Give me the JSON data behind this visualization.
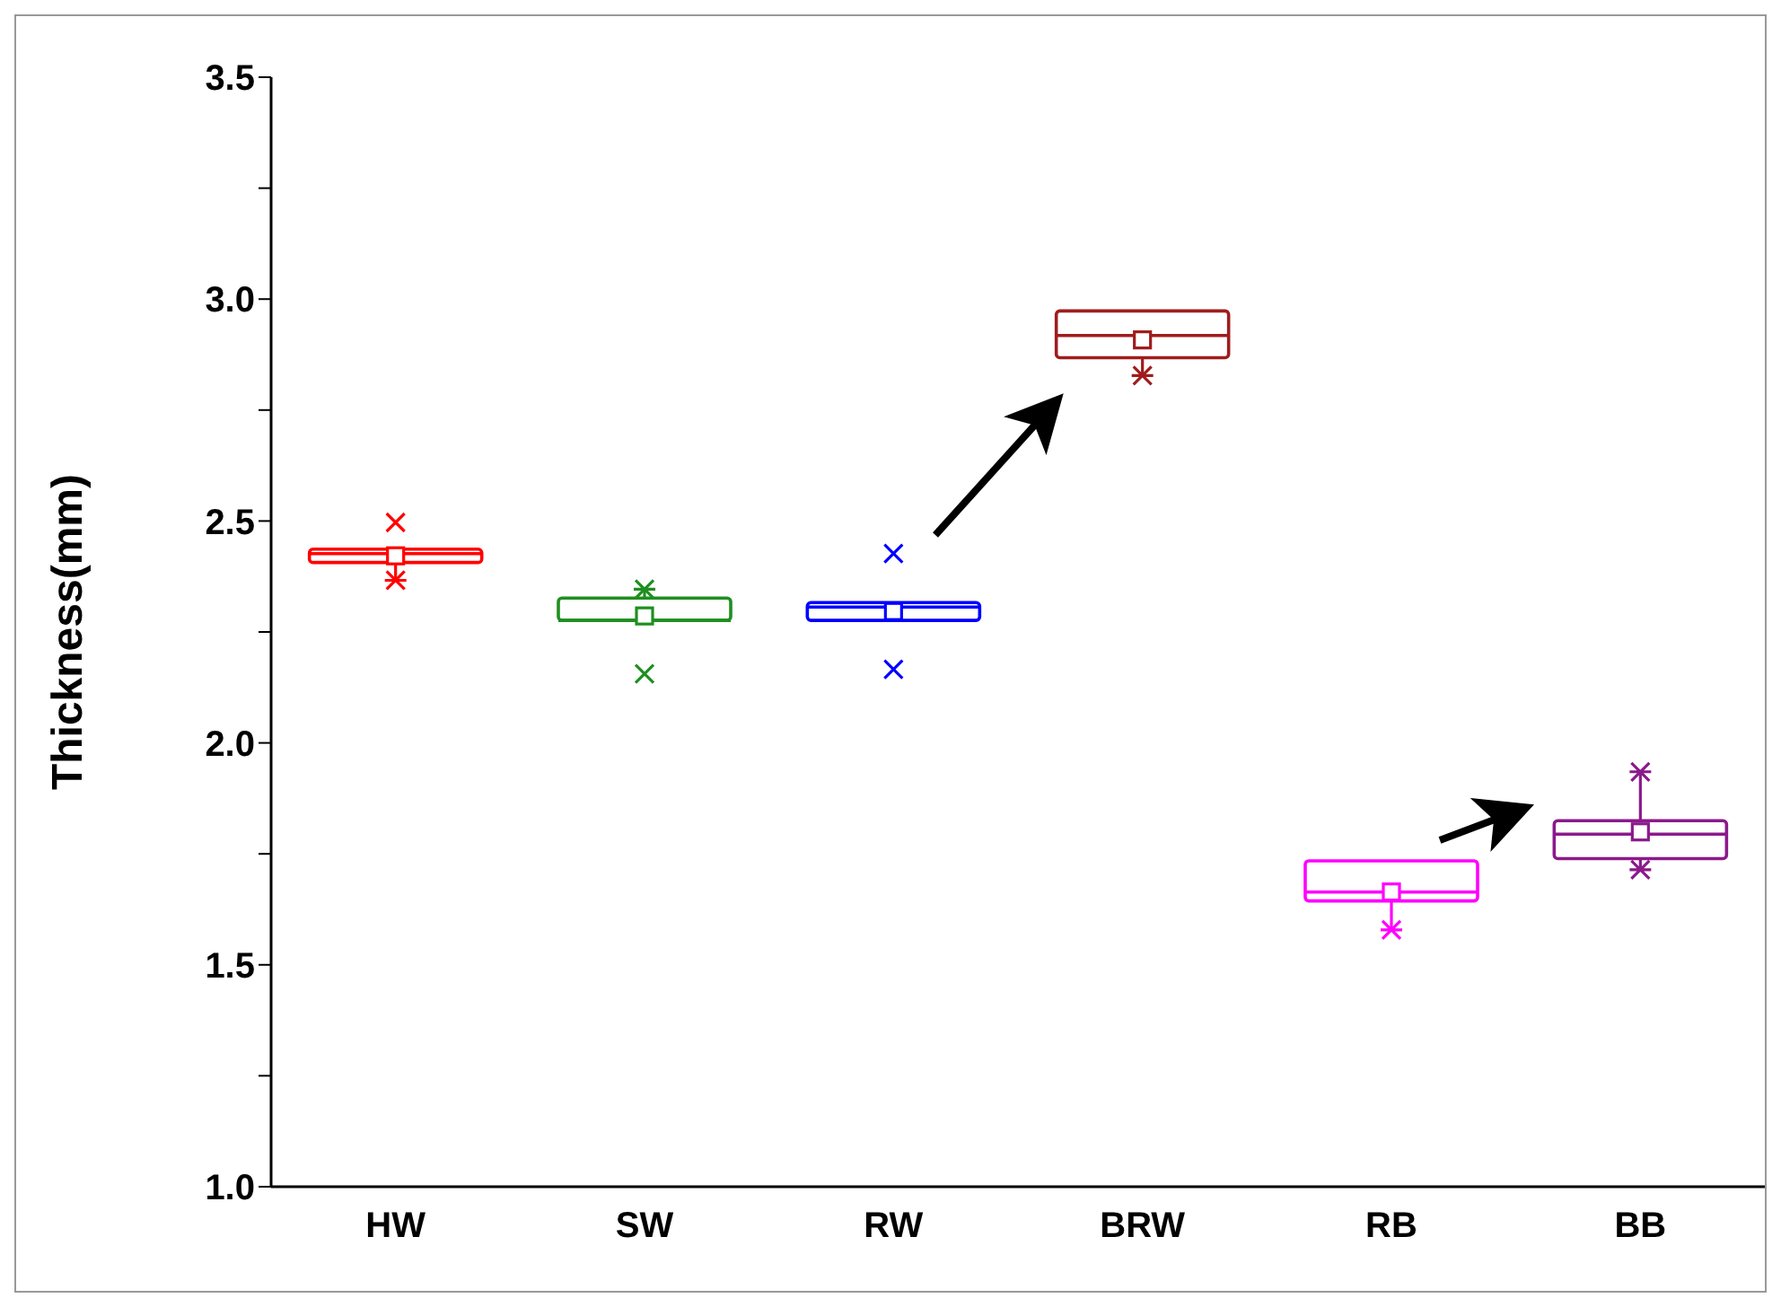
{
  "chart_data": {
    "type": "box",
    "ylabel": "Thickness(mm)",
    "categories": [
      "HW",
      "SW",
      "RW",
      "BRW",
      "RB",
      "BB"
    ],
    "ylim": [
      1,
      3.5
    ],
    "yticks": [
      {
        "value": 1,
        "label": "1.0"
      },
      {
        "value": 1.25,
        "label": null
      },
      {
        "value": 1.5,
        "label": "1.5"
      },
      {
        "value": 1.75,
        "label": null
      },
      {
        "value": 2,
        "label": "2.0"
      },
      {
        "value": 2.25,
        "label": null
      },
      {
        "value": 2.5,
        "label": "2.5"
      },
      {
        "value": 2.75,
        "label": null
      },
      {
        "value": 3,
        "label": "3.0"
      },
      {
        "value": 3.25,
        "label": null
      },
      {
        "value": 3.5,
        "label": "3.5"
      }
    ],
    "colors": [
      "#ff0000",
      "#1f8f1f",
      "#0000ff",
      "#a01c1c",
      "#ff00ff",
      "#8b1a8b"
    ],
    "boxes": [
      {
        "low": 2.37,
        "q1": 2.41,
        "median": 2.43,
        "q3": 2.44,
        "high": 2.44,
        "mean": 2.425,
        "outliers": [
          2.5
        ]
      },
      {
        "low": 2.28,
        "q1": 2.28,
        "median": 2.28,
        "q3": 2.33,
        "high": 2.35,
        "mean": 2.29,
        "outliers": [
          2.16
        ]
      },
      {
        "low": 2.28,
        "q1": 2.28,
        "median": 2.31,
        "q3": 2.32,
        "high": 2.32,
        "mean": 2.3,
        "outliers": [
          2.43,
          2.17
        ]
      },
      {
        "low": 2.83,
        "q1": 2.87,
        "median": 2.92,
        "q3": 2.975,
        "high": 2.975,
        "mean": 2.91
      },
      {
        "low": 1.585,
        "q1": 1.65,
        "median": 1.67,
        "q3": 1.74,
        "high": 1.74,
        "mean": 1.67
      },
      {
        "low": 1.72,
        "q1": 1.745,
        "median": 1.8,
        "q3": 1.83,
        "high": 1.94,
        "mean": 1.805
      }
    ],
    "marker": "square"
  }
}
